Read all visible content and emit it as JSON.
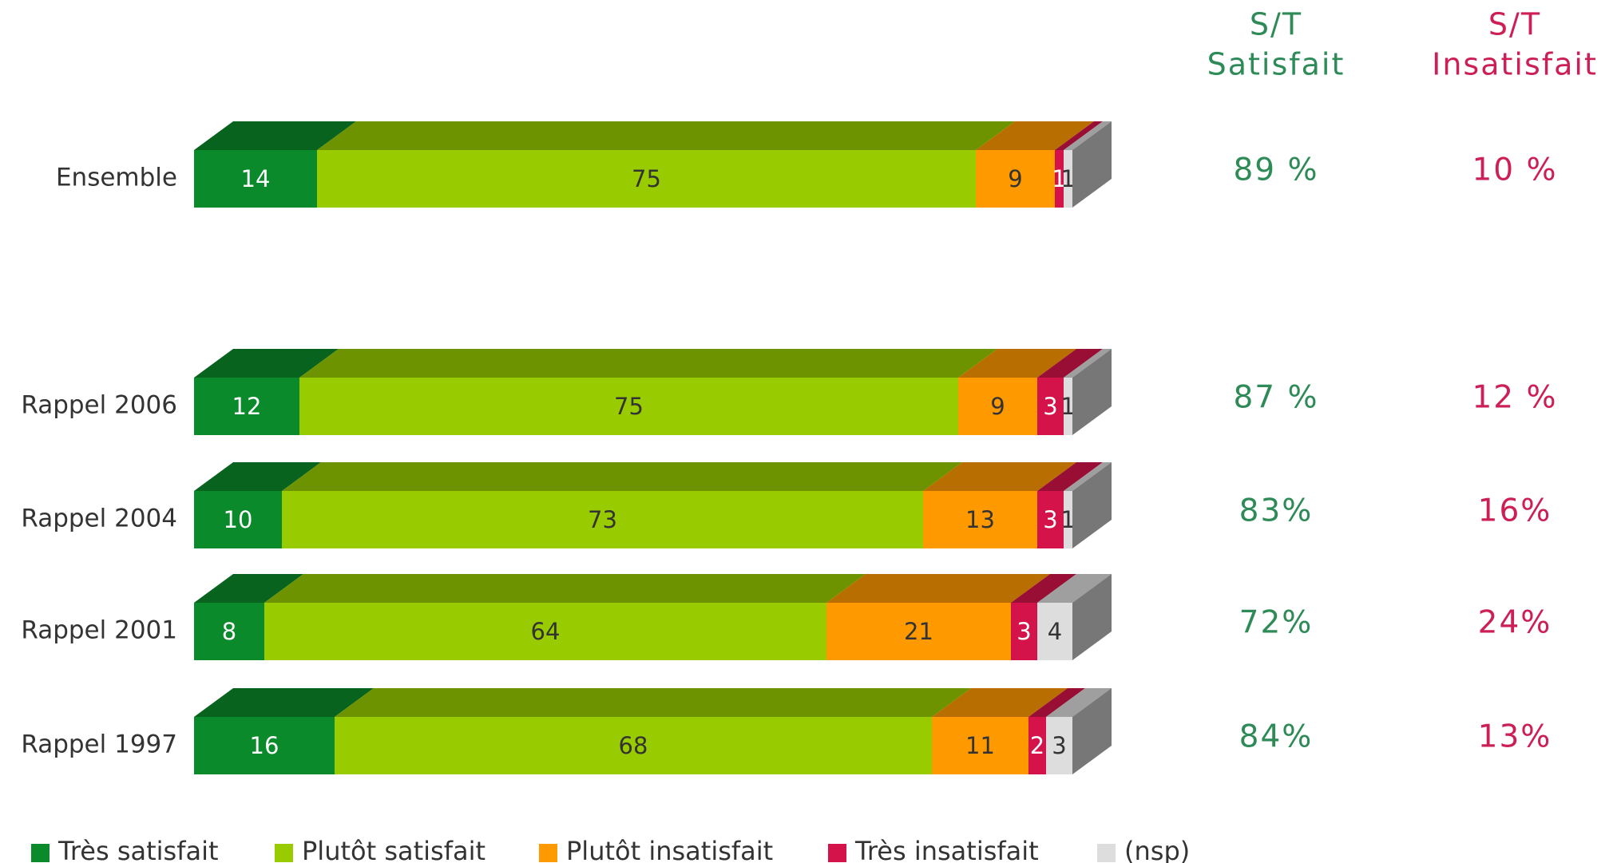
{
  "chart_data": {
    "type": "stacked-bar-3d",
    "categories": [
      "Ensemble",
      "Rappel 2006",
      "Rappel 2004",
      "Rappel 2001",
      "Rappel 1997"
    ],
    "series": [
      {
        "name": "Très satisfait",
        "color": "#0a8a2a",
        "values": [
          14,
          12,
          10,
          8,
          16
        ]
      },
      {
        "name": "Plutôt satisfait",
        "color": "#99cc00",
        "values": [
          75,
          75,
          73,
          64,
          68
        ]
      },
      {
        "name": "Plutôt insatisfait",
        "color": "#ff9900",
        "values": [
          9,
          9,
          13,
          21,
          11
        ]
      },
      {
        "name": "Très insatisfait",
        "color": "#d4134a",
        "values": [
          1,
          3,
          3,
          3,
          2
        ]
      },
      {
        "name": "(nsp)",
        "color": "#dddddd",
        "values": [
          1,
          1,
          1,
          4,
          3
        ]
      }
    ],
    "summary_columns": [
      {
        "header": [
          "S/T",
          "Satisfait"
        ],
        "color": "#2e8b57",
        "labels": [
          "89 %",
          "87 %",
          "83%",
          "72%",
          "84%"
        ]
      },
      {
        "header": [
          "S/T",
          "Insatisfait"
        ],
        "color": "#cc1f55",
        "labels": [
          "10 %",
          "12 %",
          "16%",
          "24%",
          "13%"
        ]
      }
    ],
    "legend": "bottom"
  }
}
